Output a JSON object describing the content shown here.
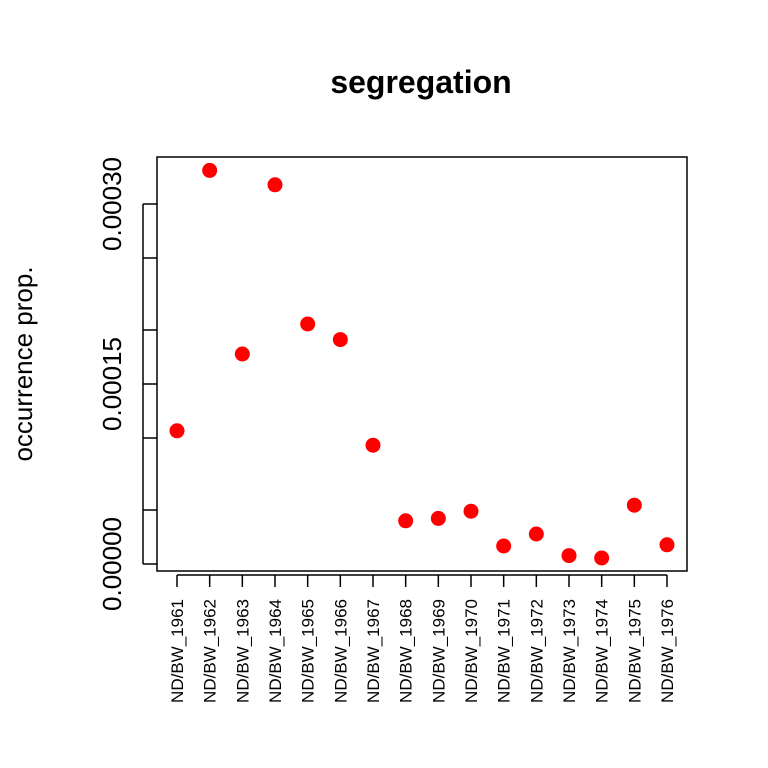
{
  "chart_data": {
    "type": "scatter",
    "title": "segregation",
    "xlabel": "",
    "ylabel": "occurrence prop.",
    "categories": [
      "ND/BW_1961",
      "ND/BW_1962",
      "ND/BW_1963",
      "ND/BW_1964",
      "ND/BW_1965",
      "ND/BW_1966",
      "ND/BW_1967",
      "ND/BW_1968",
      "ND/BW_1969",
      "ND/BW_1970",
      "ND/BW_1971",
      "ND/BW_1972",
      "ND/BW_1973",
      "ND/BW_1974",
      "ND/BW_1975",
      "ND/BW_1976"
    ],
    "values": [
      0.000111,
      0.000328,
      0.000175,
      0.000316,
      0.0002,
      0.000187,
      9.9e-05,
      3.6e-05,
      3.8e-05,
      4.4e-05,
      1.5e-05,
      2.5e-05,
      7e-06,
      5e-06,
      4.9e-05,
      1.6e-05
    ],
    "ylim": [
      -3e-06,
      0.000303
    ],
    "yticks": [
      0.0,
      0.00015,
      0.0003
    ],
    "ytick_labels": [
      "0.00000",
      "0.00015",
      "0.00030"
    ],
    "yticks_minor": [
      4.5e-05,
      0.000105,
      0.000195,
      0.000255
    ],
    "point_color": "#ff0000",
    "grid": false,
    "legend": "none"
  }
}
